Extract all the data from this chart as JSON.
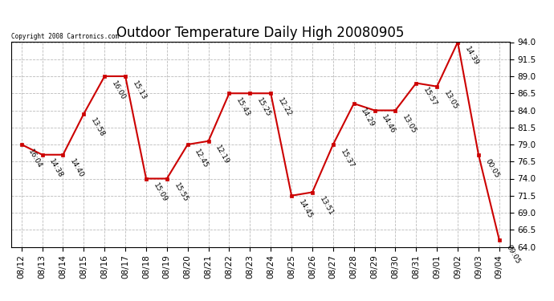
{
  "title": "Outdoor Temperature Daily High 20080905",
  "copyright": "Copyright 2008 Cartronics.com",
  "dates": [
    "08/12",
    "08/13",
    "08/14",
    "08/15",
    "08/16",
    "08/17",
    "08/18",
    "08/19",
    "08/20",
    "08/21",
    "08/22",
    "08/23",
    "08/24",
    "08/25",
    "08/26",
    "08/27",
    "08/28",
    "08/29",
    "08/30",
    "08/31",
    "09/01",
    "09/02",
    "09/03",
    "09/04"
  ],
  "temperatures": [
    79.0,
    77.5,
    77.5,
    83.5,
    89.0,
    89.0,
    74.0,
    74.0,
    79.0,
    79.5,
    86.5,
    86.5,
    86.5,
    71.5,
    72.0,
    79.0,
    85.0,
    84.0,
    84.0,
    88.0,
    87.5,
    94.0,
    77.5,
    65.0
  ],
  "time_labels": [
    "16:04",
    "14:38",
    "14:40",
    "13:58",
    "16:00",
    "15:13",
    "15:09",
    "15:55",
    "12:45",
    "12:19",
    "15:43",
    "15:25",
    "12:22",
    "14:45",
    "13:51",
    "15:37",
    "14:29",
    "14:46",
    "13:05",
    "15:57",
    "13:05",
    "14:39",
    "00:05",
    "09:05"
  ],
  "ylim": [
    64.0,
    94.0
  ],
  "yticks": [
    64.0,
    66.5,
    69.0,
    71.5,
    74.0,
    76.5,
    79.0,
    81.5,
    84.0,
    86.5,
    89.0,
    91.5,
    94.0
  ],
  "line_color": "#cc0000",
  "marker_color": "#cc0000",
  "bg_color": "#ffffff",
  "grid_color": "#bbbbbb",
  "title_fontsize": 12,
  "tick_fontsize": 7.5,
  "annot_fontsize": 6.5
}
